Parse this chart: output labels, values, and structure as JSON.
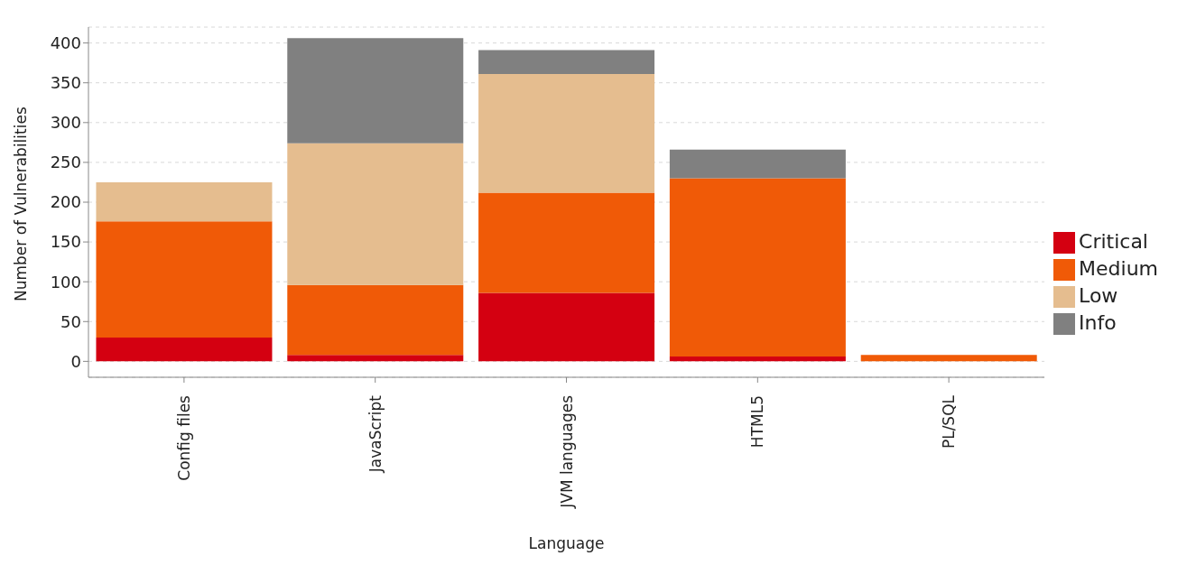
{
  "chart_data": {
    "type": "bar",
    "stacked": true,
    "xlabel": "Language",
    "ylabel": "Number of Vulnerabilities",
    "categories": [
      "Config files",
      "JavaScript",
      "JVM languages",
      "HTML5",
      "PL/SQL"
    ],
    "series": [
      {
        "name": "Critical",
        "color": "#d40011",
        "values": [
          30,
          8,
          86,
          6,
          0
        ]
      },
      {
        "name": "Medium",
        "color": "#f05a07",
        "values": [
          146,
          88,
          126,
          224,
          8
        ]
      },
      {
        "name": "Low",
        "color": "#e5bd8f",
        "values": [
          49,
          178,
          149,
          0,
          0
        ]
      },
      {
        "name": "Info",
        "color": "#808080",
        "values": [
          0,
          132,
          30,
          36,
          0
        ]
      }
    ],
    "ylim": [
      -20,
      420
    ],
    "yticks": [
      0,
      50,
      100,
      150,
      200,
      250,
      300,
      350,
      400
    ],
    "grid": "y",
    "legend": "right"
  }
}
